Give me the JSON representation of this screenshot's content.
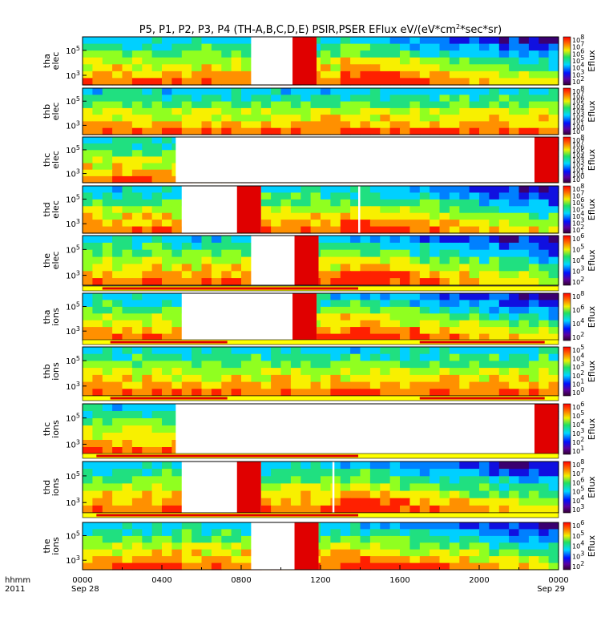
{
  "chart_data": {
    "type": "heatmap",
    "title": "P5, P1, P2, P3, P4 (TH-A,B,C,D,E) PSIR,PSER EFlux eV/(eV*cm²*sec*sr)",
    "title_parts": {
      "pre": "P5, P1, P2, P3, P4 (TH-A,B,C,D,E) PSIR,PSER EFlux eV/(eV*cm",
      "sup": "2",
      "post": "*sec*sr)"
    },
    "x_tick_labels": [
      "0000",
      "0400",
      "0800",
      "1200",
      "1600",
      "2000",
      "0000"
    ],
    "x_ticks_hours": [
      0,
      4,
      8,
      12,
      16,
      20,
      24
    ],
    "x_minor_ticks_hours": [
      2,
      6,
      10,
      14,
      18,
      22
    ],
    "x_date_left": "Sep 28",
    "x_date_right": "Sep 29",
    "x_corner_label_1": "hhmm",
    "x_corner_label_2": "2011",
    "xlim_hours": [
      0,
      24
    ],
    "colorbar_label": "Eflux",
    "colorscale": "rainbow (purple → blue → cyan → green → yellow → red)",
    "panels": [
      {
        "probe": "tha",
        "species": "elec",
        "ylabel1": "tha",
        "ylabel2": "elec",
        "y_ticks": [
          "10^5",
          "10^3"
        ],
        "cbar_ticks": [
          "10^8",
          "10^7",
          "10^6",
          "10^5",
          "10^4",
          "10^3",
          "10^2"
        ],
        "gaps_hours": [
          [
            8.5,
            11.8
          ]
        ],
        "bar": null
      },
      {
        "probe": "thb",
        "species": "elec",
        "ylabel1": "thb",
        "ylabel2": "elec",
        "y_ticks": [
          "10^5",
          "10^3"
        ],
        "cbar_ticks": [
          "10^8",
          "10^7",
          "10^6",
          "10^5",
          "10^4",
          "10^3",
          "10^2",
          "10^1",
          "10^0"
        ],
        "gaps_hours": [],
        "bar": null
      },
      {
        "probe": "thc",
        "species": "elec",
        "ylabel1": "thc",
        "ylabel2": "elec",
        "y_ticks": [
          "10^5",
          "10^3"
        ],
        "cbar_ticks": [
          "10^8",
          "10^7",
          "10^6",
          "10^5",
          "10^4",
          "10^3",
          "10^2",
          "10^1",
          "10^0"
        ],
        "gaps_hours": [
          [
            4.7,
            24
          ]
        ],
        "bar": null
      },
      {
        "probe": "thd",
        "species": "elec",
        "ylabel1": "thd",
        "ylabel2": "elec",
        "y_ticks": [
          "10^5",
          "10^3"
        ],
        "cbar_ticks": [
          "10^8",
          "10^7",
          "10^6",
          "10^5",
          "10^4",
          "10^3",
          "10^2"
        ],
        "gaps_hours": [
          [
            5.0,
            9.0
          ],
          [
            13.9,
            14.0
          ]
        ],
        "bar": null
      },
      {
        "probe": "the",
        "species": "elec",
        "ylabel1": "the",
        "ylabel2": "elec",
        "y_ticks": [
          "10^5",
          "10^3"
        ],
        "cbar_ticks": [
          "10^6",
          "10^5",
          "10^4",
          "10^3",
          "10^2"
        ],
        "gaps_hours": [
          [
            8.5,
            11.9
          ]
        ],
        "bar": {
          "red_hours": [
            [
              1.0,
              13.9
            ]
          ]
        }
      },
      {
        "probe": "tha",
        "species": "ions",
        "ylabel1": "tha",
        "ylabel2": "ions",
        "y_ticks": [
          "10^5",
          "10^3"
        ],
        "cbar_ticks": [
          "10^8",
          "10^6",
          "10^4",
          "10^2"
        ],
        "gaps_hours": [
          [
            5.0,
            11.8
          ]
        ],
        "bar": {
          "red_hours": [
            [
              1.4,
              7.3
            ],
            [
              17.0,
              23.3
            ]
          ]
        }
      },
      {
        "probe": "thb",
        "species": "ions",
        "ylabel1": "thb",
        "ylabel2": "ions",
        "y_ticks": [
          "10^5",
          "10^3"
        ],
        "cbar_ticks": [
          "10^5",
          "10^4",
          "10^3",
          "10^2",
          "10^1",
          "10^0"
        ],
        "gaps_hours": [],
        "bar": {
          "red_hours": [
            [
              1.4,
              7.3
            ],
            [
              17.0,
              23.3
            ]
          ]
        }
      },
      {
        "probe": "thc",
        "species": "ions",
        "ylabel1": "thc",
        "ylabel2": "ions",
        "y_ticks": [
          "10^5",
          "10^3"
        ],
        "cbar_ticks": [
          "10^6",
          "10^5",
          "10^4",
          "10^3",
          "10^2",
          "10^1"
        ],
        "gaps_hours": [
          [
            4.7,
            24
          ]
        ],
        "bar": {
          "red_hours": [
            [
              0.7,
              13.9
            ]
          ]
        }
      },
      {
        "probe": "thd",
        "species": "ions",
        "ylabel1": "thd",
        "ylabel2": "ions",
        "y_ticks": [
          "10^5",
          "10^3"
        ],
        "cbar_ticks": [
          "10^8",
          "10^7",
          "10^6",
          "10^5",
          "10^4",
          "10^3"
        ],
        "gaps_hours": [
          [
            5.0,
            9.0
          ],
          [
            12.6,
            12.7
          ]
        ],
        "bar": {
          "red_hours": [
            [
              0.7,
              13.9
            ]
          ]
        }
      },
      {
        "probe": "the",
        "species": "ions",
        "ylabel1": "the",
        "ylabel2": "ions",
        "y_ticks": [
          "10^5",
          "10^3"
        ],
        "cbar_ticks": [
          "10^6",
          "10^5",
          "10^4",
          "10^3",
          "10^2"
        ],
        "gaps_hours": [
          [
            8.5,
            11.9
          ]
        ],
        "bar": null
      }
    ]
  }
}
